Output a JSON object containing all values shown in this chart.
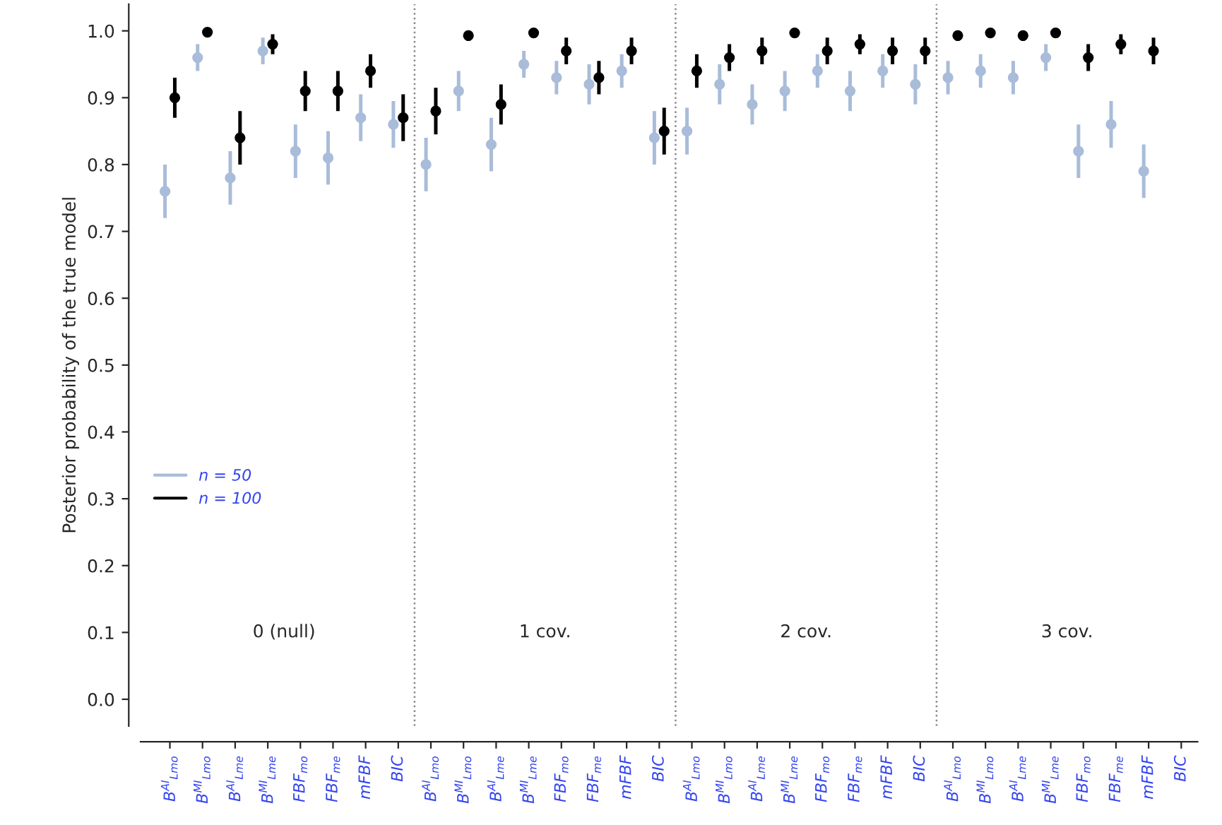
{
  "chart_data": {
    "type": "scatter",
    "ylabel": "Posterior probability of the true model",
    "categories": [
      "B$^{AI}$$_{Lmo}$",
      "B$^{MI}$$_{Lmo}$",
      "B$^{AI}$$_{Lme}$",
      "B$^{MI}$$_{Lme}$",
      "FBF$_{mo}$",
      "FBF$_{me}$",
      "mFBF",
      "BIC",
      "B$^{AI}$$_{Lmo}$",
      "B$^{MI}$$_{Lmo}$",
      "B$^{AI}$$_{Lme}$",
      "B$^{MI}$$_{Lme}$",
      "FBF$_{mo}$",
      "FBF$_{me}$",
      "mFBF",
      "BIC",
      "B$^{AI}$$_{Lmo}$",
      "B$^{MI}$$_{Lmo}$",
      "B$^{AI}$$_{Lme}$",
      "B$^{MI}$$_{Lme}$",
      "FBF$_{mo}$",
      "FBF$_{me}$",
      "mFBF",
      "BIC",
      "B$^{AI}$$_{Lmo}$",
      "B$^{MI}$$_{Lmo}$",
      "B$^{AI}$$_{Lme}$",
      "B$^{MI}$$_{Lme}$",
      "FBF$_{mo}$",
      "FBF$_{me}$",
      "mFBF",
      "BIC"
    ],
    "series": [
      {
        "name": "n = 50",
        "color": "#a9bcd9",
        "values": [
          0.76,
          0.96,
          0.78,
          0.97,
          0.82,
          0.81,
          0.87,
          0.86,
          0.8,
          0.91,
          0.83,
          0.95,
          0.93,
          0.92,
          0.94,
          0.84,
          0.85,
          0.92,
          0.89,
          0.91,
          0.94,
          0.91,
          0.94,
          0.92,
          0.93,
          0.94,
          0.93,
          0.96,
          0.82,
          0.86,
          0.79,
          null
        ],
        "errors": [
          [
            0.72,
            0.8
          ],
          [
            0.94,
            0.98
          ],
          [
            0.74,
            0.82
          ],
          [
            0.95,
            0.99
          ],
          [
            0.78,
            0.86
          ],
          [
            0.77,
            0.85
          ],
          [
            0.835,
            0.905
          ],
          [
            0.825,
            0.895
          ],
          [
            0.76,
            0.84
          ],
          [
            0.88,
            0.94
          ],
          [
            0.79,
            0.87
          ],
          [
            0.93,
            0.97
          ],
          [
            0.905,
            0.955
          ],
          [
            0.89,
            0.95
          ],
          [
            0.915,
            0.965
          ],
          [
            0.8,
            0.88
          ],
          [
            0.815,
            0.885
          ],
          [
            0.89,
            0.95
          ],
          [
            0.86,
            0.92
          ],
          [
            0.88,
            0.94
          ],
          [
            0.915,
            0.965
          ],
          [
            0.88,
            0.94
          ],
          [
            0.915,
            0.965
          ],
          [
            0.89,
            0.95
          ],
          [
            0.905,
            0.955
          ],
          [
            0.915,
            0.965
          ],
          [
            0.905,
            0.955
          ],
          [
            0.94,
            0.98
          ],
          [
            0.78,
            0.86
          ],
          [
            0.825,
            0.895
          ],
          [
            0.75,
            0.83
          ],
          null
        ]
      },
      {
        "name": "n = 100",
        "color": "#000000",
        "values": [
          0.9,
          0.998,
          0.84,
          0.98,
          0.91,
          0.91,
          0.94,
          0.87,
          0.88,
          0.993,
          0.89,
          0.997,
          0.97,
          0.93,
          0.97,
          0.85,
          0.94,
          0.96,
          0.97,
          0.997,
          0.97,
          0.98,
          0.97,
          0.97,
          0.993,
          0.997,
          0.993,
          0.997,
          0.96,
          0.98,
          0.97,
          null
        ],
        "errors": [
          [
            0.87,
            0.93
          ],
          null,
          [
            0.8,
            0.88
          ],
          [
            0.965,
            0.995
          ],
          [
            0.88,
            0.94
          ],
          [
            0.88,
            0.94
          ],
          [
            0.915,
            0.965
          ],
          [
            0.835,
            0.905
          ],
          [
            0.845,
            0.915
          ],
          [
            0.985,
            1.0
          ],
          [
            0.86,
            0.92
          ],
          null,
          [
            0.95,
            0.99
          ],
          [
            0.905,
            0.955
          ],
          [
            0.95,
            0.99
          ],
          [
            0.815,
            0.885
          ],
          [
            0.915,
            0.965
          ],
          [
            0.94,
            0.98
          ],
          [
            0.95,
            0.99
          ],
          null,
          [
            0.95,
            0.99
          ],
          [
            0.965,
            0.995
          ],
          [
            0.95,
            0.99
          ],
          [
            0.95,
            0.99
          ],
          [
            0.985,
            1.0
          ],
          null,
          [
            0.985,
            1.0
          ],
          null,
          [
            0.94,
            0.98
          ],
          [
            0.965,
            0.995
          ],
          [
            0.95,
            0.99
          ],
          null
        ]
      }
    ],
    "annotations": [
      "0 (null)",
      "1 cov.",
      "2 cov.",
      "3 cov."
    ],
    "ylim": [
      -0.04,
      1.04
    ],
    "yticks": [
      {
        "value": 0,
        "label": "0.0"
      },
      0.1,
      0.2,
      0.3,
      0.4,
      0.5,
      0.6,
      0.7,
      0.8,
      0.9,
      {
        "value": 1,
        "label": "1.0"
      }
    ],
    "marker": "circle",
    "legend": "left",
    "grid": false
  }
}
